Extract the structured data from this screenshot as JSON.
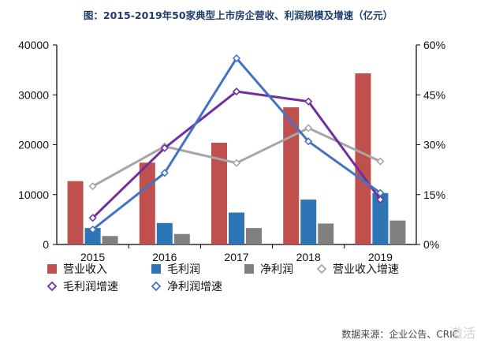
{
  "chart_data": {
    "type": "bar",
    "title": "图：2015-2019年50家典型上市房企营收、利润规模及增速（亿元）",
    "categories": [
      "2015",
      "2016",
      "2017",
      "2018",
      "2019"
    ],
    "y_left": {
      "range": [
        0,
        40000
      ],
      "ticks": [
        0,
        10000,
        20000,
        30000,
        40000
      ]
    },
    "y_right": {
      "range": [
        0,
        60
      ],
      "ticks": [
        0,
        15,
        30,
        45,
        60
      ],
      "unit": "%"
    },
    "bar_series": [
      {
        "name": "营业收入",
        "color": "#c0504d",
        "values": [
          12700,
          16400,
          20400,
          27500,
          34300
        ]
      },
      {
        "name": "毛利润",
        "color": "#2e75b6",
        "values": [
          3300,
          4300,
          6400,
          9000,
          10300
        ]
      },
      {
        "name": "净利润",
        "color": "#808080",
        "values": [
          1700,
          2100,
          3300,
          4200,
          4800
        ]
      }
    ],
    "line_series": [
      {
        "name": "营业收入增速",
        "color": "#a6a6a6",
        "values": [
          17.5,
          29.5,
          24.5,
          35,
          25
        ]
      },
      {
        "name": "毛利润增速",
        "color": "#7030a0",
        "values": [
          8,
          29,
          46,
          43,
          13.5
        ]
      },
      {
        "name": "净利润增速",
        "color": "#4472c4",
        "values": [
          4.5,
          21.5,
          56,
          31,
          15.5
        ]
      }
    ],
    "legend": [
      {
        "name": "营业收入",
        "kind": "bar",
        "color": "#c0504d"
      },
      {
        "name": "毛利润",
        "kind": "bar",
        "color": "#2e75b6"
      },
      {
        "name": "净利润",
        "kind": "bar",
        "color": "#808080"
      },
      {
        "name": "营业收入增速",
        "kind": "line",
        "color": "#a6a6a6"
      },
      {
        "name": "毛利润增速",
        "kind": "line",
        "color": "#7030a0"
      },
      {
        "name": "净利润增速",
        "kind": "line",
        "color": "#4472c4"
      }
    ],
    "source": "数据来源：企业公告、CRIC",
    "watermark": "激活"
  }
}
